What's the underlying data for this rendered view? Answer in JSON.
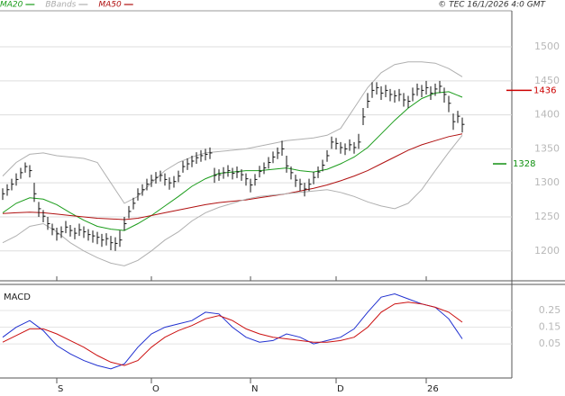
{
  "chart_data": {
    "type": "ohlc",
    "header_left": [
      {
        "name": "MA20",
        "color": "#1a9c1a"
      },
      {
        "name": "BBands",
        "color": "#b0b0b0"
      },
      {
        "name": "MA50",
        "color": "#b01010"
      }
    ],
    "copyright": "© TEC 16/1/2026 4:0 GMT",
    "categories": [
      null,
      null,
      null,
      null,
      null,
      null,
      null,
      null,
      null,
      null,
      null,
      null,
      "S",
      null,
      null,
      null,
      null,
      null,
      null,
      null,
      null,
      null,
      null,
      null,
      null,
      null,
      null,
      null,
      null,
      null,
      null,
      null,
      null,
      "O",
      null,
      null,
      null,
      null,
      null,
      null,
      null,
      null,
      null,
      null,
      null,
      null,
      null,
      null,
      null,
      null,
      null,
      null,
      null,
      null,
      null,
      "N",
      null,
      null,
      null,
      null,
      null,
      null,
      null,
      null,
      null,
      null,
      null,
      null,
      null,
      null,
      null,
      null,
      null,
      null,
      "D",
      null,
      null,
      null,
      null,
      null,
      null,
      null,
      null,
      null,
      null,
      null,
      null,
      null,
      null,
      null,
      null,
      null,
      null,
      null,
      "26",
      null,
      null,
      null,
      null,
      null,
      null,
      null,
      null
    ],
    "high": [
      1292,
      1298,
      1306,
      1314,
      1322,
      1330,
      1326,
      1300,
      1272,
      1260,
      1250,
      1240,
      1234,
      1236,
      1244,
      1238,
      1234,
      1240,
      1236,
      1232,
      1230,
      1228,
      1225,
      1226,
      1222,
      1220,
      1230,
      1250,
      1266,
      1278,
      1292,
      1298,
      1306,
      1312,
      1316,
      1318,
      1314,
      1308,
      1310,
      1318,
      1332,
      1336,
      1340,
      1345,
      1348,
      1350,
      1352,
      1322,
      1320,
      1323,
      1326,
      1322,
      1324,
      1320,
      1314,
      1306,
      1313,
      1325,
      1330,
      1338,
      1346,
      1352,
      1362,
      1340,
      1324,
      1312,
      1306,
      1300,
      1306,
      1316,
      1324,
      1334,
      1348,
      1368,
      1366,
      1360,
      1358,
      1364,
      1360,
      1372,
      1410,
      1432,
      1448,
      1448,
      1442,
      1444,
      1438,
      1436,
      1438,
      1432,
      1428,
      1440,
      1446,
      1444,
      1450,
      1442,
      1446,
      1450,
      1440,
      1428,
      1402,
      1406,
      1396
    ],
    "low": [
      1275,
      1281,
      1289,
      1296,
      1306,
      1315,
      1308,
      1272,
      1250,
      1242,
      1231,
      1223,
      1215,
      1219,
      1226,
      1221,
      1217,
      1222,
      1219,
      1215,
      1212,
      1210,
      1206,
      1208,
      1201,
      1200,
      1206,
      1230,
      1248,
      1261,
      1274,
      1281,
      1289,
      1294,
      1299,
      1302,
      1296,
      1290,
      1293,
      1301,
      1315,
      1319,
      1323,
      1328,
      1331,
      1333,
      1335,
      1300,
      1303,
      1306,
      1309,
      1305,
      1307,
      1303,
      1296,
      1286,
      1296,
      1308,
      1313,
      1321,
      1329,
      1335,
      1340,
      1315,
      1305,
      1294,
      1288,
      1280,
      1288,
      1298,
      1307,
      1317,
      1331,
      1350,
      1349,
      1343,
      1341,
      1347,
      1343,
      1350,
      1385,
      1410,
      1425,
      1430,
      1422,
      1426,
      1420,
      1418,
      1420,
      1412,
      1410,
      1420,
      1428,
      1426,
      1430,
      1422,
      1428,
      1432,
      1418,
      1404,
      1378,
      1388,
      1374
    ],
    "close": [
      1284,
      1290,
      1298,
      1305,
      1315,
      1324,
      1318,
      1284,
      1262,
      1251,
      1240,
      1232,
      1225,
      1228,
      1235,
      1230,
      1226,
      1231,
      1228,
      1224,
      1222,
      1220,
      1216,
      1218,
      1212,
      1211,
      1216,
      1240,
      1258,
      1270,
      1284,
      1290,
      1298,
      1304,
      1308,
      1311,
      1305,
      1300,
      1302,
      1310,
      1324,
      1328,
      1332,
      1337,
      1340,
      1342,
      1344,
      1311,
      1312,
      1315,
      1318,
      1314,
      1316,
      1312,
      1306,
      1297,
      1305,
      1317,
      1322,
      1330,
      1338,
      1344,
      1350,
      1325,
      1315,
      1304,
      1298,
      1291,
      1298,
      1308,
      1316,
      1326,
      1340,
      1360,
      1358,
      1352,
      1350,
      1356,
      1352,
      1360,
      1397,
      1420,
      1436,
      1440,
      1432,
      1436,
      1430,
      1428,
      1430,
      1422,
      1420,
      1430,
      1438,
      1436,
      1440,
      1432,
      1438,
      1442,
      1430,
      1417,
      1390,
      1398,
      1386
    ],
    "x": [
      0,
      3,
      6,
      9,
      12,
      15,
      18,
      21,
      24,
      27,
      30,
      33,
      36,
      39,
      42,
      45,
      48,
      51,
      54,
      57,
      60,
      63,
      66,
      69,
      72,
      75,
      78,
      81,
      84,
      87,
      90,
      93,
      96,
      99,
      102
    ],
    "series": [
      {
        "name": "MA20",
        "color": "#1a9c1a",
        "values": [
          1256,
          1270,
          1278,
          1276,
          1268,
          1256,
          1245,
          1236,
          1232,
          1230,
          1240,
          1252,
          1266,
          1280,
          1295,
          1306,
          1314,
          1316,
          1318,
          1318,
          1320,
          1322,
          1318,
          1316,
          1320,
          1328,
          1338,
          1352,
          1372,
          1392,
          1410,
          1424,
          1432,
          1434,
          1426
        ]
      },
      {
        "name": "MA50",
        "color": "#b01010",
        "values": [
          1255,
          1256,
          1257,
          1256,
          1254,
          1252,
          1250,
          1248,
          1247,
          1246,
          1248,
          1252,
          1256,
          1260,
          1264,
          1268,
          1271,
          1273,
          1275,
          1278,
          1281,
          1284,
          1288,
          1292,
          1297,
          1303,
          1310,
          1318,
          1328,
          1338,
          1348,
          1356,
          1362,
          1368,
          1372
        ]
      },
      {
        "name": "BBands",
        "color": "#b0b0b0",
        "values": [
          1310,
          1330,
          1342,
          1344,
          1340,
          1338,
          1336,
          1330,
          1300,
          1270,
          1280,
          1300,
          1318,
          1330,
          1338,
          1344,
          1346,
          1348,
          1350,
          1354,
          1358,
          1362,
          1364,
          1366,
          1370,
          1380,
          1410,
          1440,
          1462,
          1474,
          1478,
          1478,
          1476,
          1468,
          1456
        ]
      },
      {
        "name": "BBands",
        "color": "#b0b0b0",
        "values": [
          1212,
          1222,
          1236,
          1240,
          1228,
          1212,
          1200,
          1190,
          1182,
          1178,
          1186,
          1200,
          1216,
          1228,
          1244,
          1256,
          1264,
          1270,
          1276,
          1280,
          1282,
          1284,
          1286,
          1288,
          1290,
          1286,
          1280,
          1272,
          1266,
          1262,
          1270,
          1290,
          1318,
          1345,
          1370
        ]
      }
    ],
    "ylim": [
      1156,
      1553
    ],
    "yticks": [
      1200,
      1250,
      1300,
      1350,
      1400,
      1450,
      1500
    ],
    "levels": [
      {
        "value": 1436,
        "color": "#cc0000"
      },
      {
        "value": 1328,
        "color": "#109010"
      }
    ],
    "macd": {
      "title": "MACD",
      "series": [
        {
          "color": "#2030d0",
          "values": [
            0.09,
            0.15,
            0.19,
            0.13,
            0.04,
            -0.01,
            -0.05,
            -0.08,
            -0.1,
            -0.07,
            0.03,
            0.11,
            0.15,
            0.17,
            0.19,
            0.24,
            0.23,
            0.15,
            0.09,
            0.06,
            0.07,
            0.11,
            0.09,
            0.05,
            0.07,
            0.09,
            0.14,
            0.24,
            0.33,
            0.35,
            0.32,
            0.29,
            0.27,
            0.2,
            0.08
          ]
        },
        {
          "color": "#cc1010",
          "values": [
            0.06,
            0.1,
            0.14,
            0.14,
            0.11,
            0.07,
            0.03,
            -0.02,
            -0.06,
            -0.08,
            -0.05,
            0.03,
            0.09,
            0.13,
            0.16,
            0.2,
            0.22,
            0.19,
            0.14,
            0.11,
            0.09,
            0.08,
            0.07,
            0.06,
            0.06,
            0.07,
            0.09,
            0.15,
            0.24,
            0.29,
            0.3,
            0.29,
            0.27,
            0.24,
            0.18
          ]
        }
      ],
      "ylim": [
        -0.155,
        0.407
      ],
      "yticks": [
        0.05,
        0.15,
        0.25
      ]
    }
  }
}
